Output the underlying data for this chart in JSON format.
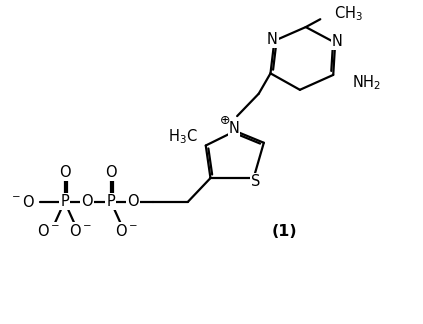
{
  "background_color": "#ffffff",
  "line_color": "#000000",
  "line_width": 1.6,
  "font_size": 10.5,
  "xlim": [
    0,
    10
  ],
  "ylim": [
    0,
    8
  ],
  "label_compound": "(1)"
}
